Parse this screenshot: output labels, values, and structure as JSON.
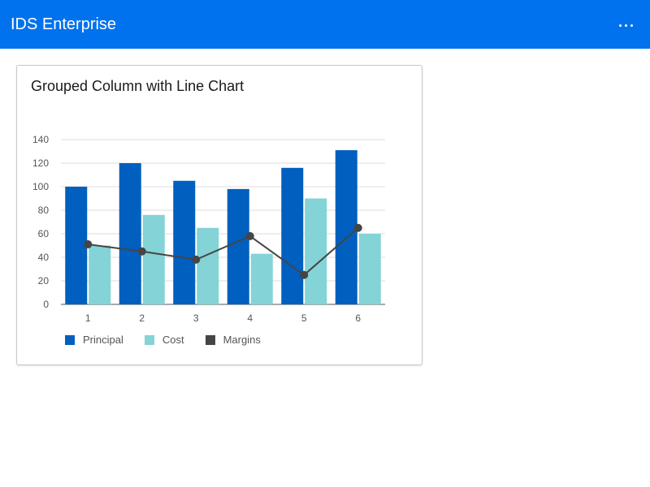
{
  "header": {
    "app_title": "IDS Enterprise",
    "more_icon": "more-horizontal-icon",
    "background_color": "#0072ed"
  },
  "card": {
    "title": "Grouped Column with Line Chart"
  },
  "chart_data": {
    "type": "bar",
    "categories": [
      "1",
      "2",
      "3",
      "4",
      "5",
      "6"
    ],
    "series": [
      {
        "name": "Principal",
        "type": "bar",
        "color": "#005fbf",
        "values": [
          100,
          120,
          105,
          98,
          116,
          131
        ]
      },
      {
        "name": "Cost",
        "type": "bar",
        "color": "#84d3d6",
        "values": [
          50,
          76,
          65,
          43,
          90,
          60
        ]
      },
      {
        "name": "Margins",
        "type": "line",
        "color": "#454545",
        "values": [
          51,
          45,
          38,
          58,
          25,
          65
        ]
      }
    ],
    "yticks": [
      "0",
      "20",
      "40",
      "60",
      "80",
      "100",
      "120",
      "140"
    ],
    "ylim": [
      0,
      140
    ],
    "grid": true,
    "legend_position": "bottom-left"
  }
}
